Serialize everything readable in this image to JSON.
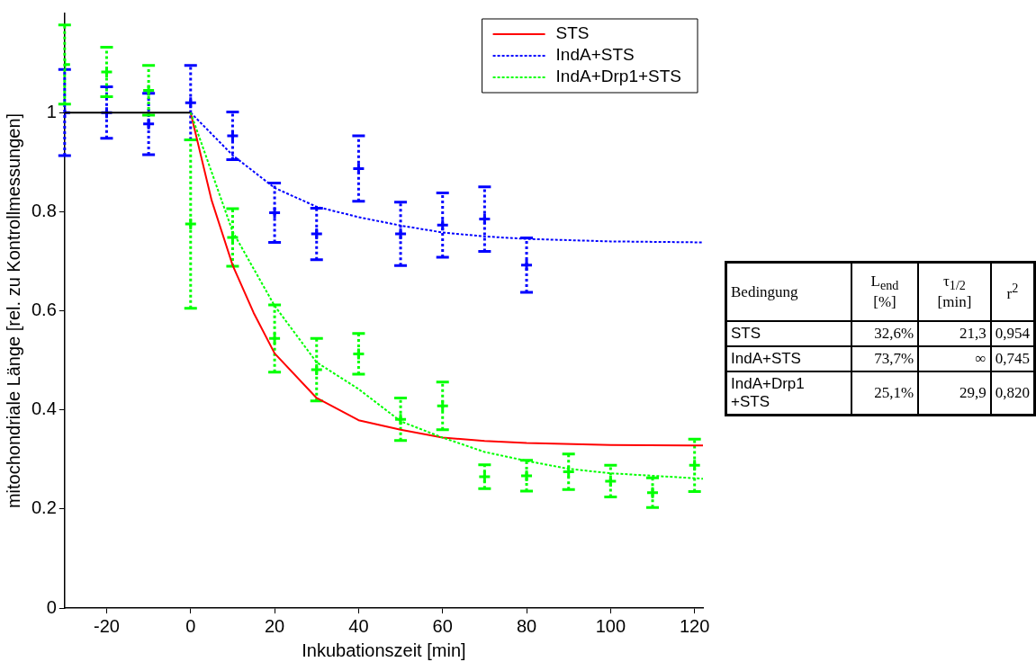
{
  "chart_data": {
    "type": "line",
    "xlabel": "Inkubationszeit [min]",
    "ylabel": "mitochondriale Länge [rel. zu Kontrollmessungen]",
    "xlim": [
      -30,
      122
    ],
    "xticks": [
      -20,
      0,
      20,
      40,
      60,
      80,
      100,
      120
    ],
    "ylim": [
      0,
      1.2
    ],
    "yticks": [
      0,
      0.2,
      0.4,
      0.6,
      0.8,
      1
    ],
    "grid": false,
    "legend": "top right",
    "series": [
      {
        "color": "#000000",
        "line_style": "solid",
        "marker": "none",
        "x": [
          -30,
          0
        ],
        "values": [
          1,
          1
        ]
      },
      {
        "name": "STS",
        "color": "#ff0000",
        "line_style": "solid",
        "marker": "none",
        "x": [
          0,
          5,
          10,
          15,
          20,
          30,
          40,
          50,
          60,
          70,
          80,
          100,
          122
        ],
        "values": [
          1,
          0.823,
          0.692,
          0.596,
          0.514,
          0.424,
          0.379,
          0.36,
          0.344,
          0.337,
          0.333,
          0.329,
          0.328
        ]
      },
      {
        "name": "IndA+STS",
        "color": "#0000ff",
        "line_style": "dotted",
        "marker": "none",
        "x": [
          0,
          10,
          20,
          30,
          40,
          50,
          60,
          70,
          80,
          100,
          122
        ],
        "values": [
          1,
          0.914,
          0.848,
          0.81,
          0.789,
          0.772,
          0.758,
          0.75,
          0.745,
          0.74,
          0.738
        ]
      },
      {
        "name": "IndA+Drp1+STS",
        "color": "#00ff00",
        "line_style": "dotted",
        "marker": "none",
        "x": [
          0,
          10,
          20,
          30,
          40,
          50,
          60,
          70,
          80,
          90,
          100,
          110,
          122
        ],
        "values": [
          1,
          0.76,
          0.61,
          0.496,
          0.442,
          0.377,
          0.344,
          0.315,
          0.297,
          0.281,
          0.272,
          0.267,
          0.261
        ]
      },
      {
        "type": "scatter",
        "color": "#0000ff",
        "marker": "cross",
        "x": [
          -30,
          -20,
          -10,
          0,
          10,
          20,
          30,
          40,
          50,
          60,
          70,
          80
        ],
        "values": [
          1,
          1,
          0.977,
          1.02,
          0.953,
          0.798,
          0.755,
          0.887,
          0.755,
          0.773,
          0.785,
          0.692
        ],
        "errors": [
          0.087,
          0.052,
          0.062,
          0.075,
          0.048,
          0.06,
          0.052,
          0.066,
          0.064,
          0.065,
          0.065,
          0.055
        ]
      },
      {
        "type": "scatter",
        "color": "#00ff00",
        "marker": "cross",
        "x": [
          -30,
          -20,
          -10,
          0,
          10,
          20,
          30,
          40,
          50,
          60,
          70,
          80,
          90,
          100,
          110,
          120
        ],
        "values": [
          1.097,
          1.082,
          1.045,
          0.775,
          0.748,
          0.544,
          0.481,
          0.513,
          0.381,
          0.408,
          0.265,
          0.267,
          0.275,
          0.256,
          0.233,
          0.288
        ],
        "errors": [
          0.08,
          0.05,
          0.05,
          0.17,
          0.058,
          0.068,
          0.063,
          0.041,
          0.043,
          0.048,
          0.024,
          0.031,
          0.036,
          0.032,
          0.03,
          0.053
        ]
      }
    ],
    "annotations": [
      "Bedingung",
      "L$_{end}$ [%]",
      "τ$_{1/2}$ [min]",
      "r$^{2}$",
      "STS",
      "32,6%",
      "21,3",
      "0,954",
      "IndA+STS",
      "73,7%",
      "∞",
      "0,745",
      "IndA+Drp1 +STS",
      "25,1%",
      "29,9",
      "0,820"
    ]
  }
}
